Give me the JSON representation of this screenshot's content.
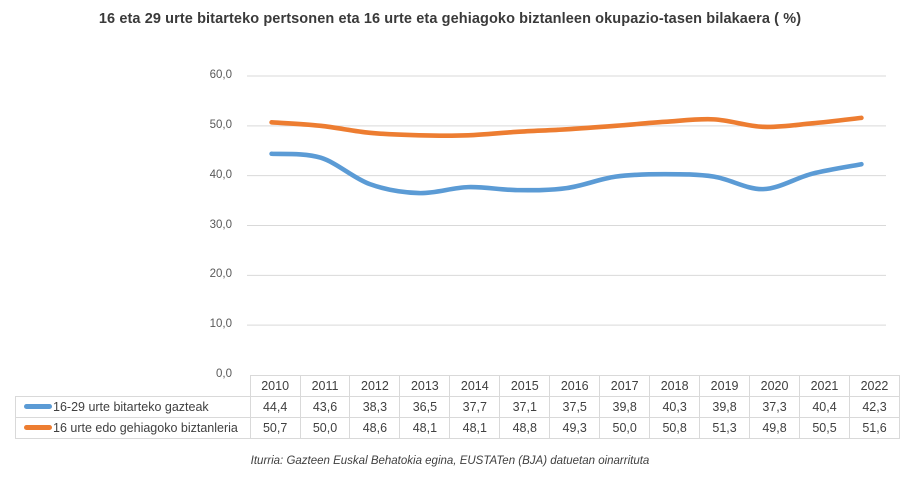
{
  "title": "16 eta 29 urte bitarteko pertsonen eta 16 urte eta gehiagoko biztanleen okupazio-tasen bilakaera ( %)",
  "source": "Iturria: Gazteen Euskal Behatokia egina, EUSTATen (BJA) datuetan oinarrituta",
  "colors": {
    "series_youth": "#5B9BD5",
    "series_total": "#ED7D31",
    "gridline": "#d9d9d9",
    "table_border": "#d9d9d9",
    "text": "#404040"
  },
  "chart_data": {
    "type": "line",
    "categories": [
      "2010",
      "2011",
      "2012",
      "2013",
      "2014",
      "2015",
      "2016",
      "2017",
      "2018",
      "2019",
      "2020",
      "2021",
      "2022"
    ],
    "series": [
      {
        "name": "16-29 urte bitarteko gazteak",
        "color": "#5B9BD5",
        "values": [
          44.4,
          43.6,
          38.3,
          36.5,
          37.7,
          37.1,
          37.5,
          39.8,
          40.3,
          39.8,
          37.3,
          40.4,
          42.3
        ]
      },
      {
        "name": "16 urte edo gehiagoko biztanleria",
        "color": "#ED7D31",
        "values": [
          50.7,
          50.0,
          48.6,
          48.1,
          48.1,
          48.8,
          49.3,
          50.0,
          50.8,
          51.3,
          49.8,
          50.5,
          51.6
        ]
      }
    ],
    "title": "16 eta 29 urte bitarteko pertsonen eta 16 urte eta gehiagoko biztanleen okupazio-tasen bilakaera ( %)",
    "xlabel": "",
    "ylabel": "",
    "ylim": [
      0,
      60
    ],
    "ytick_step": 10,
    "ytick_labels": [
      "60,0",
      "50,0",
      "40,0",
      "30,0",
      "20,0",
      "10,0",
      "0,0"
    ],
    "decimal_separator": ",",
    "grid": "horizontal",
    "legend_position": "table-left",
    "line_style": "smooth"
  }
}
